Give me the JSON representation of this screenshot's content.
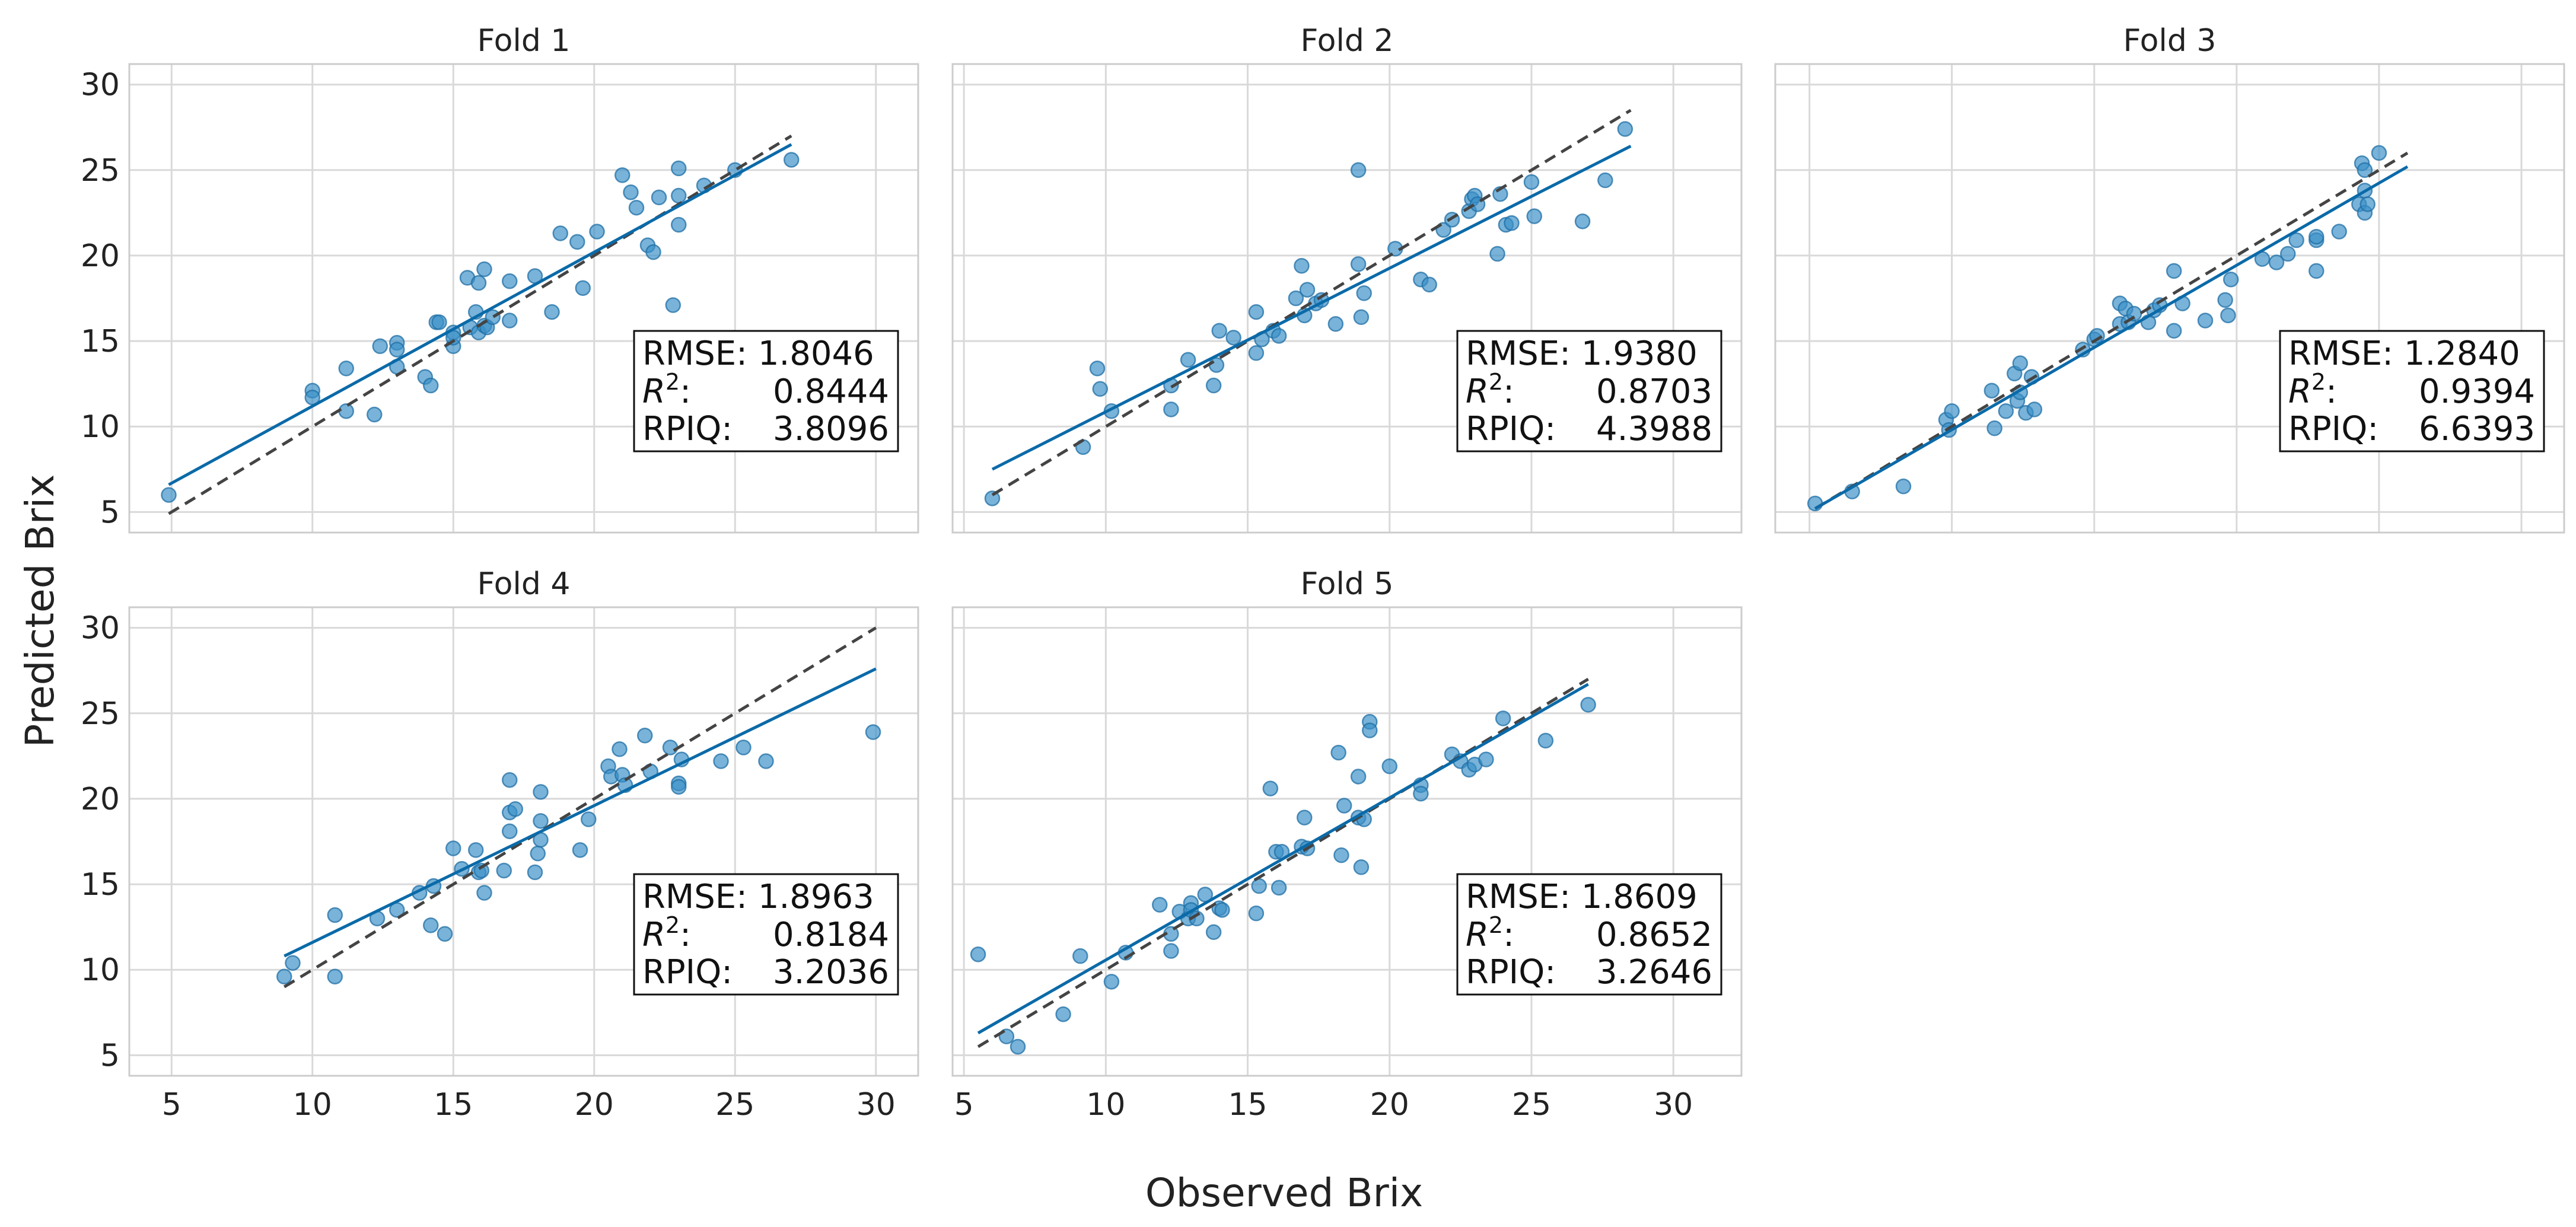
{
  "figure": {
    "xlabel": "Observed Brix",
    "ylabel": "Predicted Brix",
    "colors": {
      "points": "#3a8fc7",
      "fit_line": "#0b6aa8",
      "identity_line": "#444444",
      "grid": "#d9d9d9",
      "frame": "#cccccc"
    }
  },
  "chart_data": [
    {
      "type": "scatter",
      "title": "Fold 1",
      "xlabel": "Observed Brix",
      "ylabel": "Predicted Brix",
      "xlim": [
        3.5,
        31.5
      ],
      "ylim": [
        3.8,
        31.2
      ],
      "xticks": [
        5,
        10,
        15,
        20,
        25,
        30
      ],
      "yticks": [
        5,
        10,
        15,
        20,
        25,
        30
      ],
      "grid": true,
      "points": [
        [
          4.9,
          6.0
        ],
        [
          10.0,
          12.1
        ],
        [
          10.0,
          11.7
        ],
        [
          11.2,
          13.4
        ],
        [
          11.2,
          10.9
        ],
        [
          12.2,
          10.7
        ],
        [
          12.4,
          14.7
        ],
        [
          13.0,
          14.9
        ],
        [
          13.0,
          14.5
        ],
        [
          13.0,
          13.5
        ],
        [
          14.0,
          12.9
        ],
        [
          14.2,
          12.4
        ],
        [
          14.4,
          16.1
        ],
        [
          14.5,
          16.1
        ],
        [
          15.0,
          14.7
        ],
        [
          15.0,
          15.5
        ],
        [
          15.0,
          15.2
        ],
        [
          15.5,
          18.7
        ],
        [
          15.6,
          15.8
        ],
        [
          15.8,
          16.7
        ],
        [
          15.9,
          15.5
        ],
        [
          15.9,
          18.4
        ],
        [
          16.1,
          19.2
        ],
        [
          16.1,
          15.9
        ],
        [
          16.2,
          15.8
        ],
        [
          16.4,
          16.4
        ],
        [
          17.0,
          18.5
        ],
        [
          17.0,
          16.2
        ],
        [
          17.9,
          18.8
        ],
        [
          18.5,
          16.7
        ],
        [
          18.8,
          21.3
        ],
        [
          19.4,
          20.8
        ],
        [
          19.6,
          18.1
        ],
        [
          20.1,
          21.4
        ],
        [
          21.0,
          24.7
        ],
        [
          21.3,
          23.7
        ],
        [
          21.5,
          22.8
        ],
        [
          21.9,
          20.6
        ],
        [
          22.1,
          20.2
        ],
        [
          22.3,
          23.4
        ],
        [
          22.8,
          17.1
        ],
        [
          23.0,
          25.1
        ],
        [
          23.0,
          23.5
        ],
        [
          23.0,
          21.8
        ],
        [
          23.9,
          24.1
        ],
        [
          25.0,
          25.0
        ],
        [
          27.0,
          25.6
        ]
      ],
      "fit": [
        [
          4.9,
          6.6
        ],
        [
          27.0,
          26.5
        ]
      ],
      "identity": [
        [
          4.9,
          4.9
        ],
        [
          27.0,
          27.0
        ]
      ],
      "stats": {
        "rmse": "RMSE: 1.8046",
        "r2": "0.8444",
        "rpiq_label": "RPIQ:",
        "rpiq": "3.8096"
      }
    },
    {
      "type": "scatter",
      "title": "Fold 2",
      "xlabel": "Observed Brix",
      "ylabel": "Predicted Brix",
      "xlim": [
        4.6,
        32.4
      ],
      "ylim": [
        3.8,
        31.2
      ],
      "xticks": [
        5,
        10,
        15,
        20,
        25,
        30
      ],
      "yticks": [
        5,
        10,
        15,
        20,
        25,
        30
      ],
      "grid": true,
      "points": [
        [
          6.0,
          5.8
        ],
        [
          9.2,
          8.8
        ],
        [
          9.7,
          13.4
        ],
        [
          9.8,
          12.2
        ],
        [
          10.2,
          10.9
        ],
        [
          12.3,
          11.0
        ],
        [
          12.3,
          12.4
        ],
        [
          12.9,
          13.9
        ],
        [
          13.8,
          12.4
        ],
        [
          13.9,
          13.6
        ],
        [
          14.0,
          15.6
        ],
        [
          14.5,
          15.2
        ],
        [
          15.3,
          16.7
        ],
        [
          15.3,
          14.3
        ],
        [
          15.5,
          15.1
        ],
        [
          15.9,
          15.6
        ],
        [
          16.1,
          15.3
        ],
        [
          16.7,
          17.5
        ],
        [
          16.9,
          19.4
        ],
        [
          17.0,
          16.5
        ],
        [
          17.1,
          18.0
        ],
        [
          17.4,
          17.2
        ],
        [
          17.6,
          17.4
        ],
        [
          18.1,
          16.0
        ],
        [
          18.9,
          25.0
        ],
        [
          18.9,
          19.5
        ],
        [
          19.0,
          16.4
        ],
        [
          19.1,
          17.8
        ],
        [
          20.2,
          20.4
        ],
        [
          21.1,
          18.6
        ],
        [
          21.4,
          18.3
        ],
        [
          21.9,
          21.5
        ],
        [
          22.2,
          22.1
        ],
        [
          22.8,
          22.6
        ],
        [
          22.9,
          23.3
        ],
        [
          23.0,
          23.5
        ],
        [
          23.1,
          23.0
        ],
        [
          23.8,
          20.1
        ],
        [
          23.9,
          23.6
        ],
        [
          24.1,
          21.8
        ],
        [
          24.3,
          21.9
        ],
        [
          25.0,
          24.3
        ],
        [
          25.1,
          22.3
        ],
        [
          26.8,
          22.0
        ],
        [
          27.6,
          24.4
        ],
        [
          28.3,
          27.4
        ]
      ],
      "fit": [
        [
          6.0,
          7.5
        ],
        [
          28.5,
          26.4
        ]
      ],
      "identity": [
        [
          6.0,
          6.0
        ],
        [
          28.5,
          28.5
        ]
      ],
      "stats": {
        "rmse": "RMSE: 1.9380",
        "r2": "0.8703",
        "rpiq_label": "RPIQ:",
        "rpiq": "4.3988"
      }
    },
    {
      "type": "scatter",
      "title": "Fold 3",
      "xlim": [
        3.8,
        31.5
      ],
      "ylim": [
        3.8,
        31.2
      ],
      "xticks": [
        5,
        10,
        15,
        20,
        25,
        30
      ],
      "yticks": [
        5,
        10,
        15,
        20,
        25,
        30
      ],
      "grid": true,
      "points": [
        [
          5.2,
          5.5
        ],
        [
          6.5,
          6.2
        ],
        [
          8.3,
          6.5
        ],
        [
          9.8,
          10.4
        ],
        [
          9.9,
          9.8
        ],
        [
          10.0,
          10.9
        ],
        [
          11.4,
          12.1
        ],
        [
          11.5,
          9.9
        ],
        [
          11.9,
          10.9
        ],
        [
          12.2,
          13.1
        ],
        [
          12.3,
          11.5
        ],
        [
          12.4,
          12.0
        ],
        [
          12.4,
          13.7
        ],
        [
          12.6,
          10.8
        ],
        [
          12.8,
          12.9
        ],
        [
          12.9,
          11.0
        ],
        [
          14.6,
          14.5
        ],
        [
          15.0,
          15.1
        ],
        [
          15.1,
          15.3
        ],
        [
          15.9,
          17.2
        ],
        [
          15.9,
          16.0
        ],
        [
          16.1,
          16.9
        ],
        [
          16.2,
          16.1
        ],
        [
          16.4,
          16.6
        ],
        [
          16.9,
          16.1
        ],
        [
          17.1,
          16.8
        ],
        [
          17.3,
          17.1
        ],
        [
          17.8,
          19.1
        ],
        [
          17.8,
          15.6
        ],
        [
          18.1,
          17.2
        ],
        [
          18.9,
          16.2
        ],
        [
          19.6,
          17.4
        ],
        [
          19.7,
          16.5
        ],
        [
          19.8,
          18.6
        ],
        [
          20.9,
          19.8
        ],
        [
          21.4,
          19.6
        ],
        [
          21.8,
          20.1
        ],
        [
          22.1,
          20.9
        ],
        [
          22.8,
          20.9
        ],
        [
          22.8,
          21.1
        ],
        [
          22.8,
          19.1
        ],
        [
          23.6,
          21.4
        ],
        [
          24.3,
          23.0
        ],
        [
          24.4,
          25.4
        ],
        [
          24.5,
          25.0
        ],
        [
          24.5,
          23.8
        ],
        [
          24.5,
          22.5
        ],
        [
          24.6,
          23.0
        ],
        [
          25.0,
          26.0
        ]
      ],
      "fit": [
        [
          5.2,
          5.2
        ],
        [
          26.0,
          25.2
        ]
      ],
      "identity": [
        [
          5.2,
          5.2
        ],
        [
          26.0,
          26.0
        ]
      ],
      "stats": {
        "rmse": "RMSE: 1.2840",
        "r2": "0.9394",
        "rpiq_label": "RPIQ:",
        "rpiq": "6.6393"
      }
    },
    {
      "type": "scatter",
      "title": "Fold 4",
      "xlabel": "Observed Brix",
      "ylabel": "Predicted Brix",
      "xlim": [
        3.5,
        31.5
      ],
      "ylim": [
        3.8,
        31.2
      ],
      "xticks": [
        5,
        10,
        15,
        20,
        25,
        30
      ],
      "yticks": [
        5,
        10,
        15,
        20,
        25,
        30
      ],
      "grid": true,
      "points": [
        [
          9.0,
          9.6
        ],
        [
          9.3,
          10.4
        ],
        [
          10.8,
          13.2
        ],
        [
          10.8,
          9.6
        ],
        [
          12.3,
          13.0
        ],
        [
          13.0,
          13.5
        ],
        [
          13.8,
          14.5
        ],
        [
          14.2,
          12.6
        ],
        [
          14.3,
          14.9
        ],
        [
          14.7,
          12.1
        ],
        [
          15.0,
          17.1
        ],
        [
          15.3,
          15.9
        ],
        [
          15.8,
          17.0
        ],
        [
          15.9,
          15.7
        ],
        [
          16.0,
          15.8
        ],
        [
          16.1,
          14.5
        ],
        [
          16.8,
          15.8
        ],
        [
          17.0,
          21.1
        ],
        [
          17.0,
          19.2
        ],
        [
          17.0,
          18.1
        ],
        [
          17.2,
          19.4
        ],
        [
          17.9,
          15.7
        ],
        [
          18.0,
          16.8
        ],
        [
          18.1,
          20.4
        ],
        [
          18.1,
          17.6
        ],
        [
          18.1,
          18.7
        ],
        [
          19.5,
          17.0
        ],
        [
          19.8,
          18.8
        ],
        [
          20.5,
          21.9
        ],
        [
          20.6,
          21.3
        ],
        [
          20.9,
          22.9
        ],
        [
          21.0,
          21.4
        ],
        [
          21.1,
          20.8
        ],
        [
          21.8,
          23.7
        ],
        [
          22.0,
          21.6
        ],
        [
          22.7,
          23.0
        ],
        [
          23.0,
          20.9
        ],
        [
          23.0,
          20.7
        ],
        [
          23.1,
          22.3
        ],
        [
          24.5,
          22.2
        ],
        [
          25.3,
          23.0
        ],
        [
          26.1,
          22.2
        ],
        [
          29.9,
          23.9
        ]
      ],
      "fit": [
        [
          9.0,
          10.8
        ],
        [
          30.0,
          27.6
        ]
      ],
      "identity": [
        [
          9.0,
          9.0
        ],
        [
          30.0,
          30.0
        ]
      ],
      "stats": {
        "rmse": "RMSE: 1.8963",
        "r2": "0.8184",
        "rpiq_label": "RPIQ:",
        "rpiq": "3.2036"
      }
    },
    {
      "type": "scatter",
      "title": "Fold 5",
      "xlabel": "Observed Brix",
      "ylabel": "Predicted Brix",
      "xlim": [
        4.6,
        32.4
      ],
      "ylim": [
        3.8,
        31.2
      ],
      "xticks": [
        5,
        10,
        15,
        20,
        25,
        30
      ],
      "yticks": [
        5,
        10,
        15,
        20,
        25,
        30
      ],
      "grid": true,
      "points": [
        [
          5.5,
          10.9
        ],
        [
          6.5,
          6.1
        ],
        [
          6.9,
          5.5
        ],
        [
          8.5,
          7.4
        ],
        [
          9.1,
          10.8
        ],
        [
          10.2,
          9.3
        ],
        [
          10.7,
          11.0
        ],
        [
          11.9,
          13.8
        ],
        [
          12.3,
          12.1
        ],
        [
          12.3,
          11.1
        ],
        [
          12.6,
          13.4
        ],
        [
          12.9,
          13.0
        ],
        [
          13.0,
          13.9
        ],
        [
          13.0,
          13.5
        ],
        [
          13.2,
          13.0
        ],
        [
          13.5,
          14.4
        ],
        [
          13.8,
          12.2
        ],
        [
          14.0,
          13.6
        ],
        [
          14.1,
          13.5
        ],
        [
          15.3,
          13.3
        ],
        [
          15.4,
          14.9
        ],
        [
          15.8,
          20.6
        ],
        [
          16.0,
          16.9
        ],
        [
          16.1,
          14.8
        ],
        [
          16.2,
          16.9
        ],
        [
          16.9,
          17.2
        ],
        [
          17.0,
          18.9
        ],
        [
          17.1,
          17.1
        ],
        [
          18.2,
          22.7
        ],
        [
          18.3,
          16.7
        ],
        [
          18.4,
          19.6
        ],
        [
          18.9,
          21.3
        ],
        [
          18.9,
          18.9
        ],
        [
          19.0,
          16.0
        ],
        [
          19.1,
          18.8
        ],
        [
          19.3,
          24.5
        ],
        [
          19.3,
          24.0
        ],
        [
          20.0,
          21.9
        ],
        [
          21.1,
          20.8
        ],
        [
          21.1,
          20.3
        ],
        [
          22.2,
          22.6
        ],
        [
          22.5,
          22.2
        ],
        [
          22.8,
          21.7
        ],
        [
          23.0,
          22.0
        ],
        [
          23.4,
          22.3
        ],
        [
          24.0,
          24.7
        ],
        [
          25.5,
          23.4
        ],
        [
          27.0,
          25.5
        ]
      ],
      "fit": [
        [
          5.5,
          6.3
        ],
        [
          27.0,
          26.7
        ]
      ],
      "identity": [
        [
          5.5,
          5.5
        ],
        [
          27.0,
          27.0
        ]
      ],
      "stats": {
        "rmse": "RMSE: 1.8609",
        "r2": "0.8652",
        "rpiq_label": "RPIQ:",
        "rpiq": "3.2646"
      }
    }
  ]
}
